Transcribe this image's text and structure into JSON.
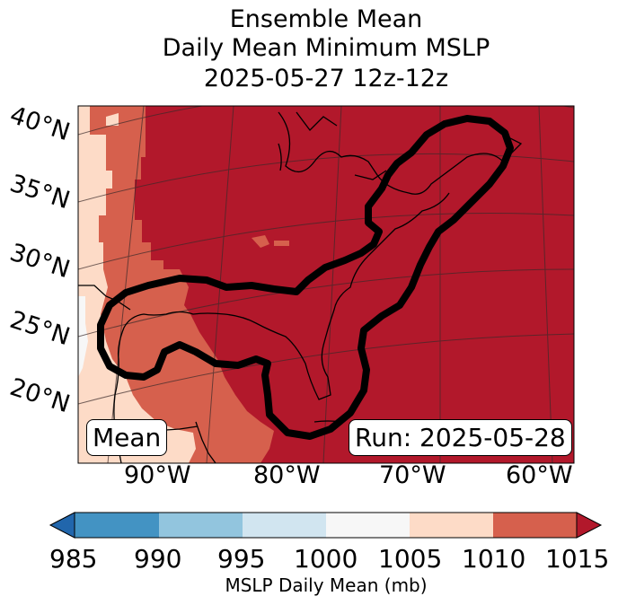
{
  "title": {
    "line1": "Ensemble Mean",
    "line2": "Daily Mean Minimum MSLP",
    "line3": "2025-05-27 12z-12z"
  },
  "map": {
    "lat_labels": [
      "40°N",
      "35°N",
      "30°N",
      "25°N",
      "20°N"
    ],
    "lon_labels": [
      "90°W",
      "80°W",
      "70°W",
      "60°W"
    ],
    "left_box": "Mean",
    "right_box": "Run: 2025-05-28",
    "overlay": "black contour outline around the eastern US coast and Gulf of Mexico"
  },
  "colorbar": {
    "ticks": [
      "985",
      "990",
      "995",
      "1000",
      "1005",
      "1010",
      "1015"
    ],
    "label": "MSLP Daily Mean (mb)",
    "colors": {
      "under": "#2166ac",
      "985-990": "#4393c3",
      "990-995": "#92c5de",
      "995-1000": "#d1e5f0",
      "1000-1005": "#f7f7f7",
      "1005-1010": "#fddbc7",
      "1010-1015": "#d6604d",
      "over": "#b2182b"
    }
  }
}
